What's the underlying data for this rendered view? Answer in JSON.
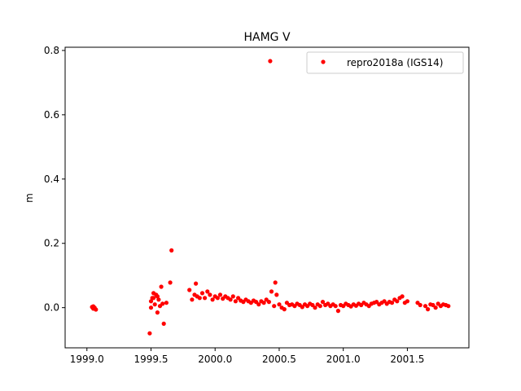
{
  "chart_data": {
    "type": "scatter",
    "title": "HAMG V",
    "xlabel": "",
    "ylabel": "m",
    "xlim": [
      1998.83,
      2001.98
    ],
    "ylim": [
      -0.125,
      0.81
    ],
    "x_ticks": [
      1999.0,
      1999.5,
      2000.0,
      2000.5,
      2001.0,
      2001.5
    ],
    "x_tick_labels": [
      "1999.0",
      "1999.5",
      "2000.0",
      "2000.5",
      "2001.0",
      "2001.5"
    ],
    "y_ticks": [
      0.0,
      0.2,
      0.4,
      0.6,
      0.8
    ],
    "y_tick_labels": [
      "0.0",
      "0.2",
      "0.4",
      "0.6",
      "0.8"
    ],
    "grid": false,
    "legend": {
      "position": "top-right"
    },
    "series": [
      {
        "name": "repro2018a (IGS14)",
        "color": "#ff0000",
        "marker": "circle",
        "x": [
          1999.04,
          1999.05,
          1999.06,
          1999.05,
          1999.07,
          1999.49,
          1999.5,
          1999.51,
          1999.52,
          1999.53,
          1999.54,
          1999.55,
          1999.56,
          1999.57,
          1999.58,
          1999.6,
          1999.62,
          1999.65,
          1999.66,
          1999.55,
          1999.59,
          1999.5,
          1999.52,
          1999.8,
          1999.82,
          1999.84,
          1999.86,
          1999.88,
          1999.9,
          1999.92,
          1999.94,
          1999.96,
          1999.98,
          2000.0,
          2000.02,
          2000.04,
          2000.06,
          2000.08,
          2000.1,
          2000.12,
          2000.14,
          2000.16,
          2000.18,
          2000.2,
          2000.22,
          2000.24,
          2000.26,
          2000.28,
          2000.3,
          2000.32,
          2000.34,
          2000.36,
          2000.38,
          2000.4,
          2000.42,
          2000.44,
          2000.46,
          2000.48,
          2000.5,
          2000.52,
          2000.54,
          2000.56,
          2000.58,
          2000.6,
          2000.62,
          2000.64,
          2000.66,
          2000.68,
          2000.7,
          2000.72,
          2000.74,
          2000.76,
          2000.78,
          2000.8,
          2000.82,
          2000.84,
          2000.86,
          2000.88,
          2000.9,
          2000.92,
          2000.94,
          2000.96,
          2000.98,
          2001.0,
          2001.02,
          2001.04,
          2001.06,
          2001.08,
          2001.1,
          2001.12,
          2001.14,
          2001.16,
          2001.18,
          2001.2,
          2001.22,
          2001.24,
          2001.26,
          2001.28,
          2001.3,
          2001.32,
          2001.34,
          2001.36,
          2001.38,
          2001.4,
          2001.42,
          2001.44,
          2001.46,
          2001.48,
          2001.5,
          2001.58,
          2001.6,
          2001.64,
          2001.66,
          2001.68,
          2001.7,
          2001.72,
          2001.74,
          2001.76,
          2001.78,
          2001.8,
          2001.82,
          1999.85,
          2000.43,
          2000.47
        ],
        "y": [
          0.002,
          -0.003,
          0.0,
          0.004,
          -0.006,
          -0.08,
          0.02,
          0.03,
          0.045,
          0.01,
          0.04,
          -0.015,
          0.025,
          0.005,
          0.065,
          -0.05,
          0.015,
          0.078,
          0.178,
          0.035,
          0.012,
          0.0,
          0.03,
          0.055,
          0.025,
          0.04,
          0.035,
          0.03,
          0.045,
          0.03,
          0.05,
          0.04,
          0.025,
          0.035,
          0.03,
          0.04,
          0.028,
          0.035,
          0.03,
          0.025,
          0.035,
          0.02,
          0.03,
          0.022,
          0.018,
          0.025,
          0.02,
          0.015,
          0.022,
          0.018,
          0.01,
          0.02,
          0.015,
          0.025,
          0.018,
          0.05,
          0.005,
          0.04,
          0.01,
          0.0,
          -0.005,
          0.015,
          0.008,
          0.01,
          0.005,
          0.012,
          0.008,
          0.002,
          0.01,
          0.005,
          0.012,
          0.008,
          0.0,
          0.01,
          0.005,
          0.018,
          0.008,
          0.012,
          0.005,
          0.01,
          0.005,
          -0.01,
          0.008,
          0.005,
          0.012,
          0.008,
          0.004,
          0.01,
          0.006,
          0.012,
          0.008,
          0.015,
          0.01,
          0.005,
          0.012,
          0.015,
          0.018,
          0.01,
          0.015,
          0.02,
          0.012,
          0.018,
          0.015,
          0.025,
          0.02,
          0.03,
          0.035,
          0.015,
          0.02,
          0.015,
          0.008,
          0.005,
          -0.005,
          0.01,
          0.008,
          0.0,
          0.012,
          0.005,
          0.01,
          0.008,
          0.005,
          0.075,
          0.767,
          0.078
        ]
      }
    ]
  }
}
